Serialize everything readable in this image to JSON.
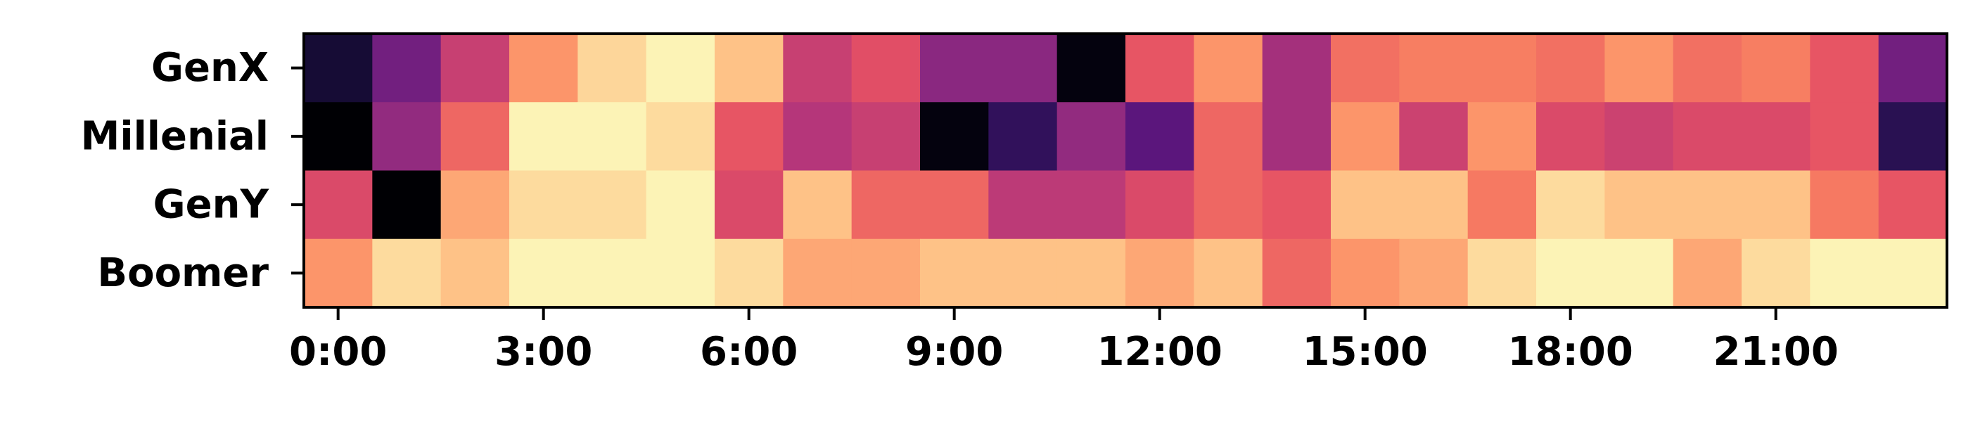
{
  "chart_data": {
    "type": "heatmap",
    "colormap": "magma",
    "value_range": [
      0,
      1
    ],
    "rows": [
      "GenX",
      "Millenial",
      "GenY",
      "Boomer"
    ],
    "columns": [
      "0:00",
      "1:00",
      "2:00",
      "3:00",
      "4:00",
      "5:00",
      "6:00",
      "7:00",
      "8:00",
      "9:00",
      "10:00",
      "11:00",
      "12:00",
      "13:00",
      "14:00",
      "15:00",
      "16:00",
      "17:00",
      "18:00",
      "19:00",
      "20:00",
      "21:00",
      "22:00",
      "23:00"
    ],
    "x_tick_labels": [
      "0:00",
      "3:00",
      "6:00",
      "9:00",
      "12:00",
      "15:00",
      "18:00",
      "21:00"
    ],
    "x_tick_positions": [
      0,
      3,
      6,
      9,
      12,
      15,
      18,
      21
    ],
    "values": [
      [
        0.1,
        0.34,
        0.55,
        0.78,
        0.92,
        0.98,
        0.88,
        0.55,
        0.62,
        0.4,
        0.4,
        0.02,
        0.64,
        0.78,
        0.46,
        0.7,
        0.73,
        0.73,
        0.7,
        0.78,
        0.7,
        0.73,
        0.64,
        0.34
      ],
      [
        0.0,
        0.42,
        0.68,
        0.98,
        0.98,
        0.93,
        0.64,
        0.5,
        0.55,
        0.02,
        0.18,
        0.42,
        0.28,
        0.68,
        0.46,
        0.78,
        0.56,
        0.78,
        0.6,
        0.56,
        0.6,
        0.6,
        0.64,
        0.16
      ],
      [
        0.6,
        0.0,
        0.82,
        0.93,
        0.93,
        0.98,
        0.6,
        0.88,
        0.68,
        0.68,
        0.52,
        0.52,
        0.6,
        0.68,
        0.64,
        0.88,
        0.88,
        0.72,
        0.93,
        0.88,
        0.88,
        0.88,
        0.72,
        0.64
      ],
      [
        0.78,
        0.93,
        0.88,
        0.98,
        0.98,
        0.98,
        0.93,
        0.82,
        0.82,
        0.88,
        0.88,
        0.88,
        0.82,
        0.88,
        0.68,
        0.78,
        0.82,
        0.93,
        0.98,
        0.98,
        0.82,
        0.93,
        0.98,
        0.98
      ]
    ]
  }
}
